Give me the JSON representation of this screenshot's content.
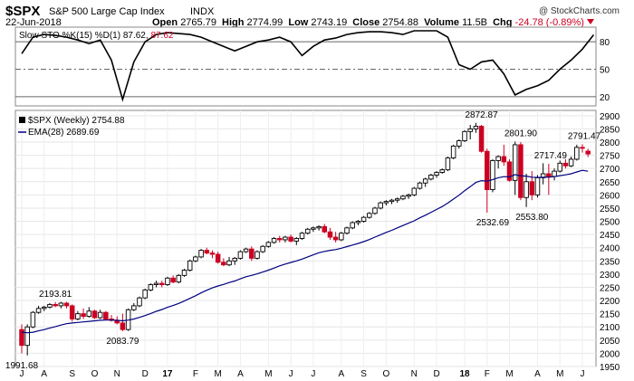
{
  "header": {
    "symbol": "$SPX",
    "name": "S&P 500 Large Cap Index",
    "exchange": "INDX",
    "watermark": "@ StockCharts.com",
    "date": "22-Jun-2018",
    "open_label": "Open",
    "open": "2765.79",
    "high_label": "High",
    "high": "2774.99",
    "low_label": "Low",
    "low": "2743.19",
    "close_label": "Close",
    "close": "2754.88",
    "volume_label": "Volume",
    "volume": "11.5B",
    "chg_label": "Chg",
    "chg": "-24.78 (-0.89%)"
  },
  "colors": {
    "up": "#000000",
    "down": "#cc0022",
    "ema": "#000080",
    "sto_d": "#cc0022"
  },
  "indicator": {
    "legend_main": "Slow STO %K(15) %D(1) 87.62,",
    "legend_d": "87.62"
  },
  "price_panel": {
    "legend_symbol": "$SPX (Weekly) 2754.88",
    "legend_ema": "EMA(28) 2689.69"
  },
  "chart_data": [
    {
      "type": "line",
      "title": "Slow STO %K(15) %D(1)",
      "ylim": [
        10,
        96
      ],
      "yticks": [
        20,
        50,
        80
      ],
      "reference_lines": [
        20,
        50,
        80
      ],
      "x": [
        0,
        2,
        4,
        6,
        8,
        10,
        12,
        14,
        16,
        18,
        20,
        22,
        24,
        26,
        28,
        30,
        32,
        34,
        36,
        38,
        40,
        42,
        44,
        46,
        48,
        50,
        52,
        54,
        56,
        58,
        60,
        62,
        64,
        66,
        68,
        70,
        72,
        74,
        76,
        78,
        80,
        82,
        84,
        86,
        88,
        90,
        92,
        94,
        96,
        98,
        100,
        102
      ],
      "values": [
        67,
        85,
        88,
        87,
        85,
        82,
        78,
        82,
        60,
        17,
        58,
        80,
        88,
        90,
        89,
        88,
        85,
        80,
        75,
        70,
        75,
        80,
        82,
        85,
        80,
        65,
        75,
        82,
        84,
        88,
        90,
        91,
        91,
        90,
        88,
        92,
        92,
        92,
        85,
        55,
        50,
        58,
        60,
        45,
        22,
        28,
        32,
        38,
        50,
        60,
        72,
        87.62
      ]
    },
    {
      "type": "candlestick",
      "series_name": "$SPX (Weekly)",
      "ylim": [
        1950,
        2920
      ],
      "yticks": [
        1950,
        2000,
        2050,
        2100,
        2150,
        2200,
        2250,
        2300,
        2350,
        2400,
        2450,
        2500,
        2550,
        2600,
        2650,
        2700,
        2750,
        2800,
        2850,
        2900
      ],
      "xticks": [
        {
          "label": "J",
          "week": 0
        },
        {
          "label": "A",
          "week": 4
        },
        {
          "label": "S",
          "week": 9
        },
        {
          "label": "O",
          "week": 13
        },
        {
          "label": "N",
          "week": 17
        },
        {
          "label": "D",
          "week": 22
        },
        {
          "label": "17",
          "week": 26
        },
        {
          "label": "F",
          "week": 31
        },
        {
          "label": "M",
          "week": 35
        },
        {
          "label": "A",
          "week": 39
        },
        {
          "label": "M",
          "week": 44
        },
        {
          "label": "J",
          "week": 48
        },
        {
          "label": "J",
          "week": 52
        },
        {
          "label": "A",
          "week": 57
        },
        {
          "label": "S",
          "week": 61
        },
        {
          "label": "O",
          "week": 65
        },
        {
          "label": "N",
          "week": 70
        },
        {
          "label": "D",
          "week": 74
        },
        {
          "label": "18",
          "week": 79
        },
        {
          "label": "F",
          "week": 83
        },
        {
          "label": "M",
          "week": 87
        },
        {
          "label": "A",
          "week": 92
        },
        {
          "label": "M",
          "week": 96
        },
        {
          "label": "J",
          "week": 100
        }
      ],
      "annotations": [
        {
          "text": "1991.68",
          "week": 0,
          "value": 1991.68
        },
        {
          "text": "2193.81",
          "week": 6,
          "value": 2193.81
        },
        {
          "text": "2083.79",
          "week": 18,
          "value": 2083.79
        },
        {
          "text": "2872.87",
          "week": 82,
          "value": 2872.87
        },
        {
          "text": "2532.69",
          "week": 84,
          "value": 2532.69
        },
        {
          "text": "2801.90",
          "week": 89,
          "value": 2801.9
        },
        {
          "text": "2553.80",
          "week": 91,
          "value": 2553.8
        },
        {
          "text": "2717.49",
          "week": 94,
          "value": 2717.49
        },
        {
          "text": "2791.47",
          "week": 100,
          "value": 2791.47
        }
      ],
      "ohlc": [
        [
          2090,
          2110,
          2000,
          2030
        ],
        [
          2030,
          2110,
          1992,
          2100
        ],
        [
          2100,
          2160,
          2095,
          2155
        ],
        [
          2155,
          2180,
          2150,
          2170
        ],
        [
          2170,
          2180,
          2160,
          2175
        ],
        [
          2175,
          2190,
          2170,
          2185
        ],
        [
          2185,
          2194,
          2175,
          2180
        ],
        [
          2180,
          2195,
          2170,
          2190
        ],
        [
          2190,
          2195,
          2170,
          2180
        ],
        [
          2180,
          2185,
          2120,
          2130
        ],
        [
          2130,
          2160,
          2125,
          2150
        ],
        [
          2150,
          2170,
          2130,
          2140
        ],
        [
          2140,
          2175,
          2135,
          2160
        ],
        [
          2160,
          2165,
          2130,
          2135
        ],
        [
          2135,
          2165,
          2130,
          2155
        ],
        [
          2155,
          2160,
          2125,
          2130
        ],
        [
          2130,
          2145,
          2120,
          2125
        ],
        [
          2125,
          2140,
          2110,
          2115
        ],
        [
          2115,
          2150,
          2084,
          2090
        ],
        [
          2090,
          2170,
          2085,
          2165
        ],
        [
          2165,
          2190,
          2160,
          2180
        ],
        [
          2180,
          2215,
          2175,
          2210
        ],
        [
          2210,
          2245,
          2205,
          2240
        ],
        [
          2240,
          2265,
          2235,
          2260
        ],
        [
          2260,
          2275,
          2250,
          2265
        ],
        [
          2265,
          2275,
          2250,
          2260
        ],
        [
          2260,
          2290,
          2255,
          2285
        ],
        [
          2285,
          2295,
          2265,
          2270
        ],
        [
          2270,
          2300,
          2265,
          2295
        ],
        [
          2295,
          2320,
          2290,
          2315
        ],
        [
          2315,
          2355,
          2310,
          2350
        ],
        [
          2350,
          2370,
          2345,
          2365
        ],
        [
          2365,
          2395,
          2360,
          2390
        ],
        [
          2390,
          2400,
          2375,
          2380
        ],
        [
          2380,
          2390,
          2360,
          2375
        ],
        [
          2375,
          2385,
          2340,
          2345
        ],
        [
          2345,
          2360,
          2330,
          2335
        ],
        [
          2335,
          2365,
          2330,
          2350
        ],
        [
          2350,
          2365,
          2335,
          2360
        ],
        [
          2360,
          2390,
          2355,
          2385
        ],
        [
          2385,
          2400,
          2380,
          2395
        ],
        [
          2395,
          2405,
          2350,
          2360
        ],
        [
          2360,
          2390,
          2355,
          2385
        ],
        [
          2385,
          2410,
          2380,
          2405
        ],
        [
          2405,
          2425,
          2400,
          2420
        ],
        [
          2420,
          2440,
          2415,
          2435
        ],
        [
          2435,
          2445,
          2420,
          2430
        ],
        [
          2430,
          2445,
          2420,
          2440
        ],
        [
          2440,
          2450,
          2420,
          2425
        ],
        [
          2425,
          2440,
          2410,
          2435
        ],
        [
          2435,
          2460,
          2430,
          2455
        ],
        [
          2455,
          2475,
          2450,
          2470
        ],
        [
          2470,
          2480,
          2460,
          2475
        ],
        [
          2475,
          2485,
          2465,
          2480
        ],
        [
          2480,
          2490,
          2455,
          2460
        ],
        [
          2460,
          2475,
          2430,
          2440
        ],
        [
          2440,
          2460,
          2420,
          2430
        ],
        [
          2430,
          2460,
          2425,
          2455
        ],
        [
          2455,
          2480,
          2450,
          2475
        ],
        [
          2475,
          2500,
          2470,
          2495
        ],
        [
          2495,
          2505,
          2485,
          2500
        ],
        [
          2500,
          2520,
          2495,
          2515
        ],
        [
          2515,
          2535,
          2510,
          2530
        ],
        [
          2530,
          2555,
          2525,
          2550
        ],
        [
          2550,
          2575,
          2545,
          2570
        ],
        [
          2570,
          2580,
          2560,
          2575
        ],
        [
          2575,
          2585,
          2565,
          2580
        ],
        [
          2580,
          2590,
          2570,
          2585
        ],
        [
          2585,
          2600,
          2580,
          2595
        ],
        [
          2595,
          2605,
          2585,
          2600
        ],
        [
          2600,
          2630,
          2595,
          2625
        ],
        [
          2625,
          2650,
          2620,
          2645
        ],
        [
          2645,
          2665,
          2630,
          2660
        ],
        [
          2660,
          2680,
          2655,
          2675
        ],
        [
          2675,
          2690,
          2665,
          2685
        ],
        [
          2685,
          2700,
          2680,
          2695
        ],
        [
          2695,
          2745,
          2690,
          2740
        ],
        [
          2740,
          2790,
          2735,
          2785
        ],
        [
          2785,
          2810,
          2775,
          2805
        ],
        [
          2805,
          2845,
          2800,
          2840
        ],
        [
          2840,
          2865,
          2810,
          2850
        ],
        [
          2850,
          2873,
          2835,
          2860
        ],
        [
          2860,
          2865,
          2760,
          2765
        ],
        [
          2765,
          2775,
          2533,
          2620
        ],
        [
          2620,
          2735,
          2610,
          2730
        ],
        [
          2730,
          2750,
          2700,
          2745
        ],
        [
          2745,
          2790,
          2710,
          2725
        ],
        [
          2725,
          2735,
          2650,
          2655
        ],
        [
          2655,
          2802,
          2600,
          2790
        ],
        [
          2790,
          2800,
          2580,
          2590
        ],
        [
          2590,
          2680,
          2554,
          2650
        ],
        [
          2650,
          2690,
          2580,
          2600
        ],
        [
          2600,
          2675,
          2590,
          2665
        ],
        [
          2665,
          2720,
          2640,
          2680
        ],
        [
          2680,
          2718,
          2600,
          2670
        ],
        [
          2670,
          2700,
          2655,
          2690
        ],
        [
          2690,
          2730,
          2685,
          2720
        ],
        [
          2720,
          2735,
          2700,
          2710
        ],
        [
          2710,
          2745,
          2705,
          2735
        ],
        [
          2735,
          2790,
          2730,
          2780
        ],
        [
          2780,
          2792,
          2760,
          2779
        ],
        [
          2765.79,
          2774.99,
          2743.19,
          2754.88
        ]
      ],
      "ema": [
        2080,
        2078,
        2080,
        2085,
        2090,
        2096,
        2101,
        2107,
        2112,
        2115,
        2117,
        2119,
        2121,
        2123,
        2125,
        2126,
        2126,
        2125,
        2123,
        2126,
        2130,
        2136,
        2143,
        2151,
        2159,
        2166,
        2174,
        2181,
        2189,
        2198,
        2208,
        2218,
        2229,
        2239,
        2248,
        2255,
        2261,
        2268,
        2274,
        2282,
        2290,
        2295,
        2301,
        2308,
        2315,
        2323,
        2331,
        2338,
        2344,
        2350,
        2357,
        2365,
        2373,
        2381,
        2386,
        2390,
        2393,
        2398,
        2404,
        2410,
        2416,
        2423,
        2431,
        2440,
        2449,
        2458,
        2466,
        2475,
        2484,
        2493,
        2502,
        2513,
        2523,
        2534,
        2545,
        2556,
        2569,
        2584,
        2599,
        2616,
        2631,
        2647,
        2654,
        2652,
        2658,
        2665,
        2669,
        2668,
        2677,
        2672,
        2671,
        2667,
        2666,
        2667,
        2667,
        2669,
        2673,
        2676,
        2680,
        2687,
        2693,
        2689.69
      ]
    }
  ]
}
